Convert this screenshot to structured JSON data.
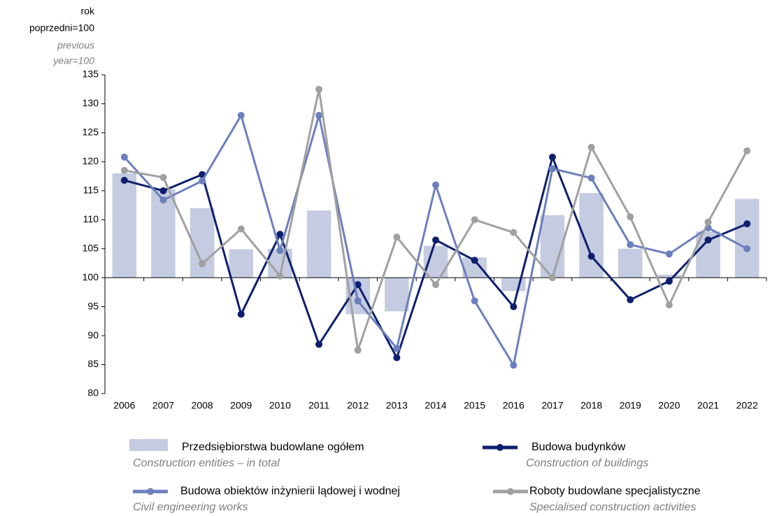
{
  "chart_data": {
    "type": "combo",
    "ylabel": [
      "rok",
      "poprzedni=100"
    ],
    "ylabel_en": [
      "previous",
      "year=100"
    ],
    "categories": [
      "2006",
      "2007",
      "2008",
      "2009",
      "2010",
      "2011",
      "2012",
      "2013",
      "2014",
      "2015",
      "2016",
      "2017",
      "2018",
      "2019",
      "2020",
      "2021",
      "2022"
    ],
    "ylim": [
      80,
      135
    ],
    "yticks": [
      80,
      85,
      90,
      95,
      100,
      105,
      110,
      115,
      120,
      125,
      130,
      135
    ],
    "baseline": 100,
    "grid": false,
    "series": [
      {
        "name": "Przedsiębiorstwa budowlane ogółem",
        "name_en": "Construction entities – in total",
        "type": "bar",
        "color": "#c5cbe0",
        "values": [
          118,
          115.3,
          112,
          104.9,
          105,
          111.6,
          93.7,
          94.2,
          105.5,
          103.5,
          97.7,
          110.8,
          114.6,
          105,
          100.5,
          108,
          113.6
        ]
      },
      {
        "name": "Budowa budynków",
        "name_en": "Construction of buildings",
        "type": "line",
        "color": "#0d1f6e",
        "values": [
          116.8,
          115,
          117.8,
          93.7,
          107.5,
          88.5,
          98.8,
          86.2,
          106.5,
          103,
          95,
          120.8,
          103.7,
          96.2,
          99.4,
          106.5,
          109.3
        ]
      },
      {
        "name": "Budowa obiektów inżynierii lądowej i wodnej",
        "name_en": "Civil engineering works",
        "type": "line",
        "color": "#6c7fbd",
        "values": [
          120.8,
          113.4,
          116.7,
          128,
          104.7,
          128,
          96,
          87.8,
          116,
          96,
          84.9,
          118.8,
          117.2,
          105.7,
          104.1,
          108.6,
          105
        ]
      },
      {
        "name": "Roboty budowlane specjalistyczne",
        "name_en": "Specialised construction activities",
        "type": "line",
        "color": "#a0a0a0",
        "values": [
          118.5,
          117.3,
          102.4,
          108.4,
          100.3,
          132.5,
          87.5,
          107,
          98.8,
          110,
          107.8,
          100,
          122.5,
          110.5,
          95.3,
          109.6,
          121.9
        ]
      }
    ]
  }
}
